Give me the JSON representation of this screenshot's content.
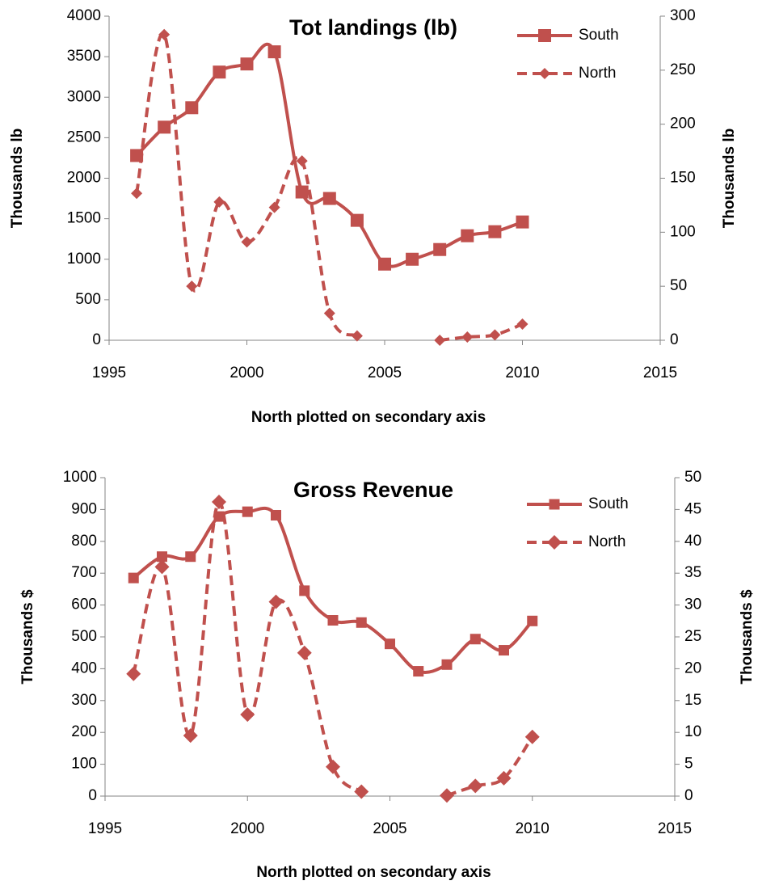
{
  "chart_data": [
    {
      "type": "line",
      "title": "Tot landings (lb)",
      "xlabel": "North plotted on secondary axis",
      "ylabel": "Thousands lb",
      "y2label": "Thousands lb",
      "x": [
        1996,
        1997,
        1998,
        1999,
        2000,
        2001,
        2002,
        2003,
        2004,
        2005,
        2006,
        2007,
        2008,
        2009,
        2010
      ],
      "series": [
        {
          "name": "South",
          "color": "#c0504d",
          "marker": "square",
          "dash": "solid",
          "axis": "y",
          "values": [
            2280,
            2630,
            2870,
            3310,
            3410,
            3560,
            1830,
            1750,
            1480,
            940,
            1000,
            1120,
            1290,
            1340,
            1460
          ]
        },
        {
          "name": "North",
          "color": "#c0504d",
          "marker": "diamond",
          "dash": "dashed",
          "axis": "y2",
          "values": [
            136,
            283,
            50,
            128,
            91,
            123,
            166,
            25,
            4,
            null,
            null,
            0,
            3,
            5,
            15
          ]
        }
      ],
      "xlim": [
        1995,
        2015
      ],
      "xticks": [
        1995,
        2000,
        2005,
        2010,
        2015
      ],
      "ylim": [
        0,
        4000
      ],
      "yticks": [
        0,
        500,
        1000,
        1500,
        2000,
        2500,
        3000,
        3500,
        4000
      ],
      "y2lim": [
        0,
        300
      ],
      "y2ticks": [
        0,
        50,
        100,
        150,
        200,
        250,
        300
      ],
      "grid": false,
      "legend": "top-right"
    },
    {
      "type": "line",
      "title": "Gross Revenue",
      "xlabel": "North plotted on secondary axis",
      "ylabel": "Thousands $",
      "y2label": "Thousands $",
      "x": [
        1996,
        1997,
        1998,
        1999,
        2000,
        2001,
        2002,
        2003,
        2004,
        2005,
        2006,
        2007,
        2008,
        2009,
        2010
      ],
      "series": [
        {
          "name": "South",
          "color": "#c0504d",
          "marker": "square",
          "dash": "solid",
          "axis": "y",
          "values": [
            685,
            752,
            752,
            878,
            893,
            882,
            645,
            552,
            545,
            478,
            392,
            413,
            493,
            458,
            550
          ]
        },
        {
          "name": "North",
          "color": "#c0504d",
          "marker": "diamond",
          "dash": "dashed",
          "axis": "y2",
          "values": [
            19.2,
            36,
            9.5,
            46.2,
            12.8,
            30.5,
            22.5,
            4.6,
            0.7,
            null,
            null,
            0.1,
            1.6,
            2.8,
            9.3
          ]
        }
      ],
      "xlim": [
        1995,
        2015
      ],
      "xticks": [
        1995,
        2000,
        2005,
        2010,
        2015
      ],
      "ylim": [
        0,
        1000
      ],
      "yticks": [
        0,
        100,
        200,
        300,
        400,
        500,
        600,
        700,
        800,
        900,
        1000
      ],
      "y2lim": [
        0,
        50
      ],
      "y2ticks": [
        0,
        5,
        10,
        15,
        20,
        25,
        30,
        35,
        40,
        45,
        50
      ],
      "grid": false,
      "legend": "top-right"
    }
  ]
}
